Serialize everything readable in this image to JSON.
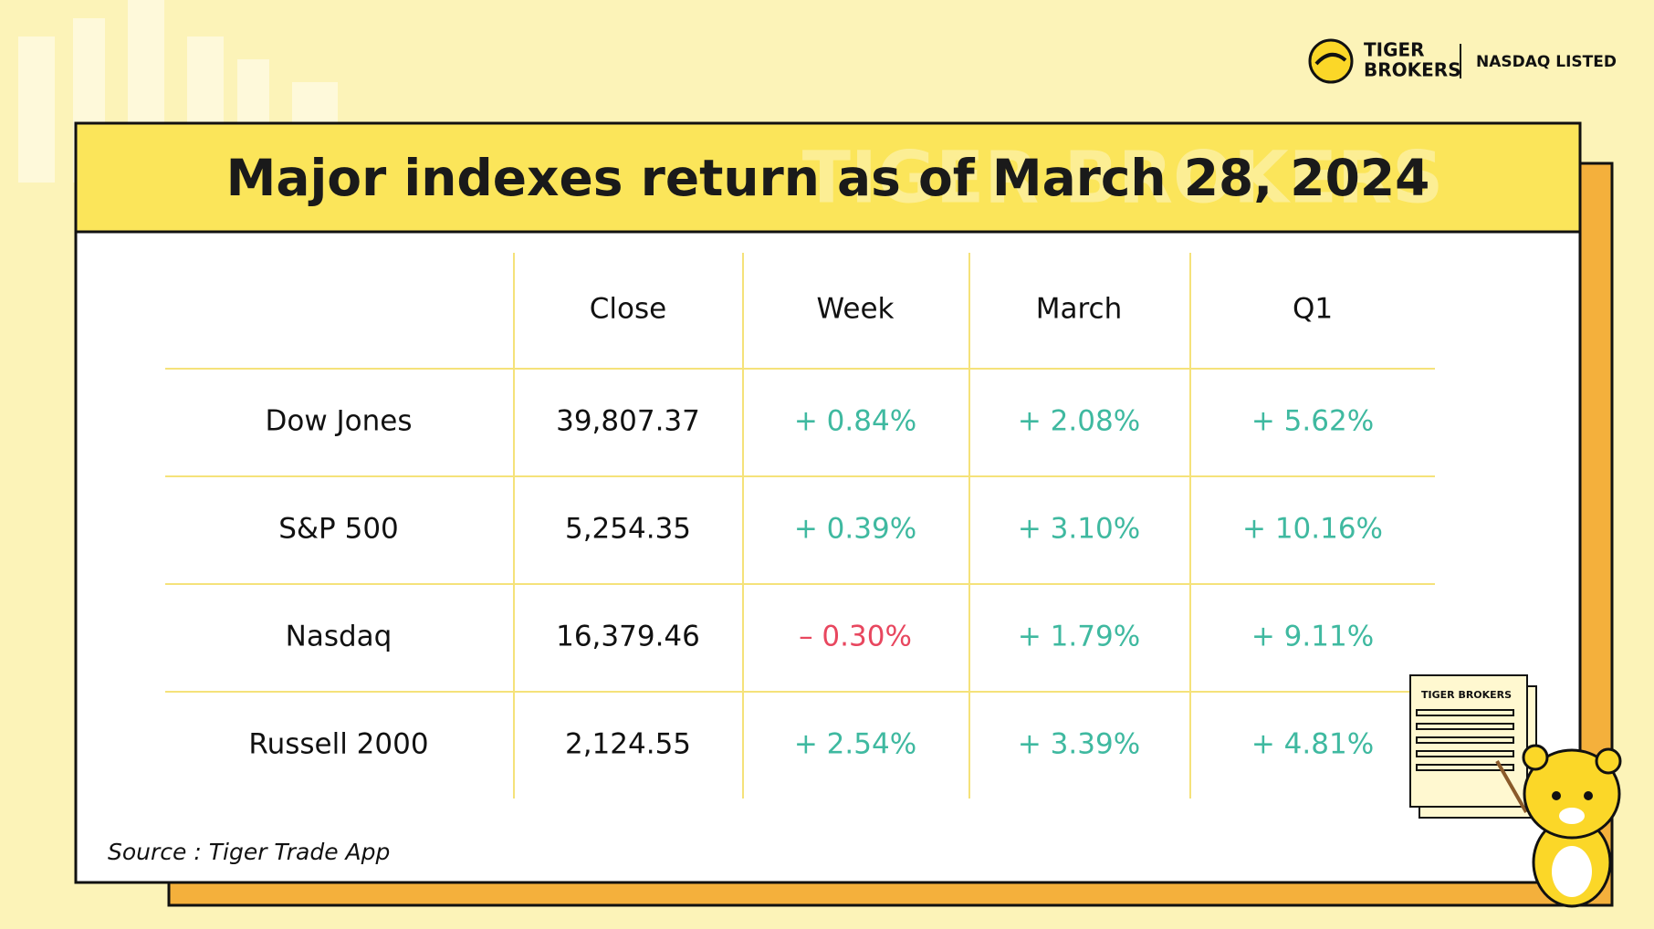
{
  "logo": {
    "line1": "TIGER",
    "line2": "BROKERS",
    "listing": "NASDAQ LISTED"
  },
  "watermark": "TIGER BROKERS",
  "header": {
    "title": "Major indexes return as of March 28, 2024"
  },
  "table": {
    "columns": [
      "Close",
      "Week",
      "March",
      "Q1"
    ],
    "rows": [
      {
        "name": "Dow Jones",
        "close": "39,807.37",
        "changes": [
          {
            "text": "+ 0.84%",
            "color": "#3fb9a0"
          },
          {
            "text": "+ 2.08%",
            "color": "#3fb9a0"
          },
          {
            "text": "+ 5.62%",
            "color": "#3fb9a0"
          }
        ]
      },
      {
        "name": "S&P 500",
        "close": "5,254.35",
        "changes": [
          {
            "text": "+ 0.39%",
            "color": "#3fb9a0"
          },
          {
            "text": "+ 3.10%",
            "color": "#3fb9a0"
          },
          {
            "text": "+ 10.16%",
            "color": "#3fb9a0"
          }
        ]
      },
      {
        "name": "Nasdaq",
        "close": "16,379.46",
        "changes": [
          {
            "text": "– 0.30%",
            "color": "#e8475f"
          },
          {
            "text": "+ 1.79%",
            "color": "#3fb9a0"
          },
          {
            "text": "+ 9.11%",
            "color": "#3fb9a0"
          }
        ]
      },
      {
        "name": "Russell 2000",
        "close": "2,124.55",
        "changes": [
          {
            "text": "+ 2.54%",
            "color": "#3fb9a0"
          },
          {
            "text": "+ 3.39%",
            "color": "#3fb9a0"
          },
          {
            "text": "+ 4.81%",
            "color": "#3fb9a0"
          }
        ]
      }
    ]
  },
  "footnote": "Source : Tiger Trade App",
  "mascot_sign": "TIGER BROKERS"
}
